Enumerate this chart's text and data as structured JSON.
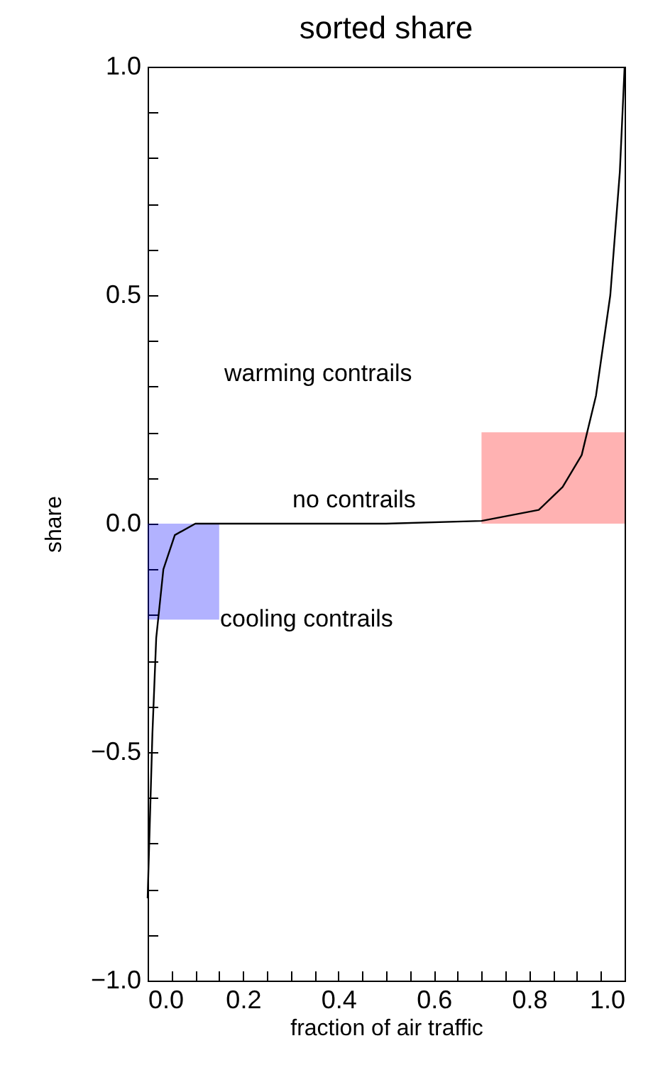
{
  "chart_data": {
    "type": "line",
    "title": "sorted share",
    "xlabel": "fraction of air traffic",
    "ylabel": "share",
    "xlim": [
      0,
      1
    ],
    "ylim": [
      -1,
      1
    ],
    "xticks": [
      {
        "value": 0,
        "label": "0.0"
      },
      {
        "value": 0.05,
        "label": null
      },
      {
        "value": 0.1,
        "label": null
      },
      {
        "value": 0.15,
        "label": null
      },
      {
        "value": 0.2,
        "label": "0.2"
      },
      {
        "value": 0.25,
        "label": null
      },
      {
        "value": 0.3,
        "label": null
      },
      {
        "value": 0.35,
        "label": null
      },
      {
        "value": 0.4,
        "label": "0.4"
      },
      {
        "value": 0.45,
        "label": null
      },
      {
        "value": 0.5,
        "label": null
      },
      {
        "value": 0.55,
        "label": null
      },
      {
        "value": 0.6,
        "label": "0.6"
      },
      {
        "value": 0.65,
        "label": null
      },
      {
        "value": 0.7,
        "label": null
      },
      {
        "value": 0.75,
        "label": null
      },
      {
        "value": 0.8,
        "label": "0.8"
      },
      {
        "value": 0.85,
        "label": null
      },
      {
        "value": 0.9,
        "label": null
      },
      {
        "value": 0.95,
        "label": null
      },
      {
        "value": 1,
        "label": "1.0"
      }
    ],
    "yticks": [
      {
        "value": -1,
        "label": "−1.0"
      },
      {
        "value": -0.9,
        "label": null
      },
      {
        "value": -0.8,
        "label": null
      },
      {
        "value": -0.7,
        "label": null
      },
      {
        "value": -0.6,
        "label": null
      },
      {
        "value": -0.5,
        "label": "−0.5"
      },
      {
        "value": -0.4,
        "label": null
      },
      {
        "value": -0.3,
        "label": null
      },
      {
        "value": -0.2,
        "label": null
      },
      {
        "value": -0.1,
        "label": null
      },
      {
        "value": 0,
        "label": "0.0"
      },
      {
        "value": 0.1,
        "label": null
      },
      {
        "value": 0.2,
        "label": null
      },
      {
        "value": 0.3,
        "label": null
      },
      {
        "value": 0.4,
        "label": null
      },
      {
        "value": 0.5,
        "label": "0.5"
      },
      {
        "value": 0.6,
        "label": null
      },
      {
        "value": 0.7,
        "label": null
      },
      {
        "value": 0.8,
        "label": null
      },
      {
        "value": 0.9,
        "label": null
      },
      {
        "value": 1,
        "label": "1.0"
      }
    ],
    "grid": false,
    "legend": false,
    "marker": "none",
    "line_style": "solid",
    "series": [
      {
        "type": "area",
        "color": "#0000ff",
        "x": [
          0,
          0.15
        ],
        "values": [
          -0.21,
          -0.21
        ]
      },
      {
        "type": "area",
        "color": "#ff0000",
        "x": [
          0.7,
          1.0
        ],
        "values": [
          0.2,
          0.2
        ]
      },
      {
        "color": "#000000",
        "x": [
          0,
          0.01,
          0.018,
          0.033,
          0.057,
          0.1,
          0.3,
          0.5,
          0.7,
          0.82,
          0.87,
          0.91,
          0.94,
          0.97,
          0.99,
          1.0
        ],
        "values": [
          -0.82,
          -0.46,
          -0.25,
          -0.1,
          -0.025,
          0,
          0,
          0,
          0.006,
          0.03,
          0.08,
          0.15,
          0.28,
          0.5,
          0.77,
          1.0
        ]
      }
    ],
    "annotations": [
      "warming contrails",
      "no contrails",
      "cooling contrails"
    ]
  }
}
